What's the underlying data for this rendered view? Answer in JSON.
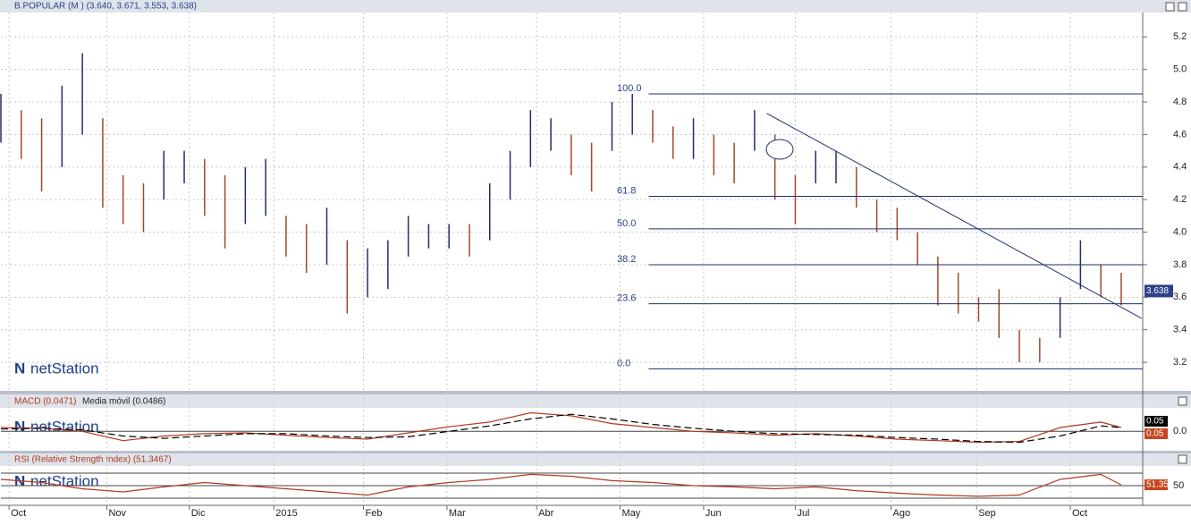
{
  "chart_data": [
    {
      "type": "hilo",
      "title": "B.POPULAR (M ) (3.640, 3.671, 3.553, 3.638)",
      "watermark": "netStation",
      "x": [
        0,
        1,
        2,
        3,
        4,
        5,
        6,
        7,
        8,
        9,
        10,
        11,
        12,
        13,
        14,
        15,
        16,
        17,
        18,
        19,
        20,
        21,
        22,
        23,
        24,
        25,
        26,
        27,
        28,
        29,
        30,
        31,
        32,
        33,
        34,
        35,
        36,
        37,
        38,
        39,
        40,
        41,
        42,
        43,
        44,
        45,
        46,
        47,
        48,
        49,
        50,
        51,
        52,
        53,
        54,
        55
      ],
      "high": [
        4.85,
        4.75,
        4.7,
        4.9,
        5.1,
        4.7,
        4.35,
        4.3,
        4.5,
        4.5,
        4.45,
        4.35,
        4.4,
        4.45,
        4.1,
        4.05,
        4.15,
        3.95,
        3.9,
        3.95,
        4.1,
        4.05,
        4.05,
        4.05,
        4.3,
        4.5,
        4.75,
        4.7,
        4.6,
        4.55,
        4.8,
        4.85,
        4.75,
        4.65,
        4.7,
        4.6,
        4.55,
        4.75,
        4.6,
        4.35,
        4.5,
        4.5,
        4.4,
        4.2,
        4.15,
        4.0,
        3.85,
        3.75,
        3.6,
        3.65,
        3.4,
        3.35,
        3.6,
        3.95,
        3.8,
        3.75
      ],
      "low": [
        4.55,
        4.45,
        4.25,
        4.4,
        4.6,
        4.15,
        4.05,
        4.0,
        4.2,
        4.3,
        4.1,
        3.9,
        4.05,
        4.1,
        3.85,
        3.75,
        3.8,
        3.5,
        3.6,
        3.65,
        3.85,
        3.9,
        3.9,
        3.85,
        3.95,
        4.2,
        4.4,
        4.5,
        4.35,
        4.25,
        4.5,
        4.6,
        4.55,
        4.45,
        4.45,
        4.35,
        4.3,
        4.5,
        4.2,
        4.05,
        4.3,
        4.3,
        4.15,
        4.0,
        3.95,
        3.8,
        3.55,
        3.5,
        3.45,
        3.35,
        3.2,
        3.2,
        3.35,
        3.65,
        3.6,
        3.55
      ],
      "up_color": "#1f2f6e",
      "down_color": "#a0482a",
      "last": 3.638,
      "xlim": [
        0,
        56
      ],
      "ylim": [
        3.03,
        5.35
      ],
      "yticks": [
        {
          "value": 3.2,
          "label": "3.2"
        },
        3.4,
        3.6,
        3.8,
        {
          "value": 4.0,
          "label": "4.0"
        },
        4.2,
        4.4,
        4.6,
        4.8,
        {
          "value": 5.0,
          "label": "5.0"
        },
        5.2
      ],
      "xticks": [
        {
          "value": 0.4,
          "label": "Oct"
        },
        {
          "value": 5.2,
          "label": "Nov"
        },
        {
          "value": 9.25,
          "label": "Dic"
        },
        {
          "value": 13.4,
          "label": "2015"
        },
        {
          "value": 17.8,
          "label": "Feb"
        },
        {
          "value": 21.9,
          "label": "Mar"
        },
        {
          "value": 26.3,
          "label": "Abr"
        },
        {
          "value": 30.4,
          "label": "May"
        },
        {
          "value": 34.5,
          "label": "Jun"
        },
        {
          "value": 39,
          "label": "Jul"
        },
        {
          "value": 43.7,
          "label": "Ago"
        },
        {
          "value": 47.9,
          "label": "Sep"
        },
        {
          "value": 52.5,
          "label": "Oct"
        }
      ],
      "fib_start": 31.8,
      "fib": [
        {
          "label": "100.0",
          "price": 4.85
        },
        {
          "label": "61.8",
          "price": 4.22
        },
        {
          "label": "50.0",
          "price": 4.02
        },
        {
          "label": "38.2",
          "price": 3.8
        },
        {
          "label": "23.6",
          "price": 3.56
        },
        {
          "label": "0.0",
          "price": 3.16
        }
      ],
      "trendline": {
        "x": [
          37.6,
          56
        ],
        "y": [
          4.73,
          3.47
        ]
      }
    },
    {
      "type": "line",
      "title": "MACD (0.0471)",
      "subtitle": "Media móvil (0.0486)",
      "x": [
        0,
        2,
        4,
        6,
        8,
        10,
        12,
        14,
        16,
        18,
        20,
        22,
        24,
        26,
        28,
        30,
        32,
        34,
        36,
        38,
        40,
        42,
        44,
        46,
        48,
        50,
        52,
        54,
        55
      ],
      "series": [
        {
          "name": "MACD",
          "color": "#b23a1e",
          "values": [
            0.05,
            0.04,
            0.0,
            -0.12,
            -0.06,
            -0.03,
            -0.02,
            -0.05,
            -0.08,
            -0.1,
            -0.02,
            0.06,
            0.12,
            0.24,
            0.2,
            0.1,
            0.05,
            0.0,
            -0.02,
            -0.05,
            -0.03,
            -0.06,
            -0.1,
            -0.12,
            -0.14,
            -0.13,
            0.05,
            0.12,
            0.05
          ],
          "value_label": "0.05"
        },
        {
          "name": "Media móvil",
          "color": "#000000",
          "dashed": true,
          "values": [
            0.03,
            0.04,
            0.02,
            -0.06,
            -0.09,
            -0.06,
            -0.03,
            -0.03,
            -0.06,
            -0.08,
            -0.07,
            0.0,
            0.07,
            0.16,
            0.22,
            0.16,
            0.09,
            0.04,
            0.0,
            -0.03,
            -0.04,
            -0.05,
            -0.08,
            -0.1,
            -0.13,
            -0.14,
            -0.06,
            0.07,
            0.05
          ],
          "value_label": "0.05"
        }
      ],
      "xlim": [
        0,
        56
      ],
      "ylim": [
        -0.25,
        0.28
      ],
      "yticks": [
        {
          "value": 0,
          "label": "0.0"
        }
      ]
    },
    {
      "type": "line",
      "title": "RSI (Relative Strength Index) (51.3467)",
      "x": [
        0,
        2,
        4,
        6,
        8,
        10,
        12,
        14,
        16,
        18,
        20,
        22,
        24,
        26,
        28,
        30,
        32,
        34,
        36,
        38,
        40,
        42,
        44,
        46,
        48,
        50,
        52,
        54,
        55
      ],
      "series": [
        {
          "name": "RSI",
          "color": "#b23a1e",
          "values": [
            60,
            55,
            45,
            40,
            48,
            55,
            50,
            45,
            40,
            35,
            48,
            55,
            60,
            68,
            65,
            58,
            55,
            50,
            48,
            45,
            48,
            42,
            38,
            35,
            33,
            35,
            60,
            68,
            51.35
          ]
        }
      ],
      "levels": [
        30,
        70
      ],
      "xlim": [
        0,
        56
      ],
      "ylim": [
        20,
        80
      ],
      "yticks": [
        50
      ]
    }
  ]
}
